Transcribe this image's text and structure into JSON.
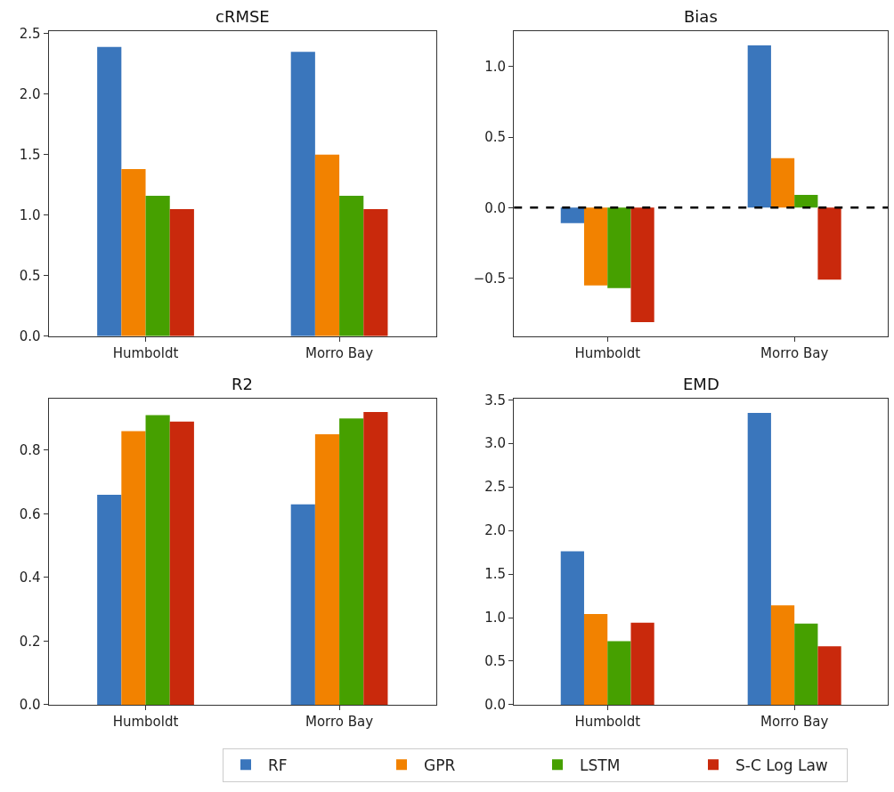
{
  "chart_data": [
    {
      "type": "bar",
      "title": "cRMSE",
      "categories": [
        "Humboldt",
        "Morro Bay"
      ],
      "ylim": [
        0,
        2.52
      ],
      "yticks": [
        {
          "value": 0,
          "label": "0.0"
        },
        {
          "value": 0.5,
          "label": "0.5"
        },
        {
          "value": 1,
          "label": "1.0"
        },
        {
          "value": 1.5,
          "label": "1.5"
        },
        {
          "value": 2,
          "label": "2.0"
        },
        {
          "value": 2.5,
          "label": "2.5"
        }
      ],
      "legend": "bottom",
      "series": [
        {
          "name": "RF",
          "color": "#3a76bc",
          "values": [
            2.39,
            2.35
          ]
        },
        {
          "name": "GPR",
          "color": "#f28200",
          "values": [
            1.38,
            1.5
          ]
        },
        {
          "name": "LSTM",
          "color": "#46a000",
          "values": [
            1.16,
            1.16
          ]
        },
        {
          "name": "S-C Log Law",
          "color": "#c9290c",
          "values": [
            1.05,
            1.05
          ]
        }
      ]
    },
    {
      "type": "bar",
      "title": "Bias",
      "categories": [
        "Humboldt",
        "Morro Bay"
      ],
      "ylim": [
        -0.91,
        1.25
      ],
      "yticks": [
        {
          "value": -0.5,
          "label": "−0.5"
        },
        {
          "value": 0,
          "label": "0.0"
        },
        {
          "value": 0.5,
          "label": "0.5"
        },
        {
          "value": 1,
          "label": "1.0"
        }
      ],
      "ref_lines": [
        {
          "axis": "y",
          "value": 0,
          "label": null,
          "color": "#000000",
          "line_style": "dashed"
        }
      ],
      "series": [
        {
          "color": "#3a76bc",
          "values": [
            -0.11,
            1.15
          ]
        },
        {
          "color": "#f28200",
          "values": [
            -0.55,
            0.35
          ]
        },
        {
          "color": "#46a000",
          "values": [
            -0.57,
            0.09
          ]
        },
        {
          "color": "#c9290c",
          "values": [
            -0.81,
            -0.51
          ]
        }
      ]
    },
    {
      "type": "bar",
      "title": "R2",
      "categories": [
        "Humboldt",
        "Morro Bay"
      ],
      "ylim": [
        0,
        0.961
      ],
      "yticks": [
        {
          "value": 0,
          "label": "0.0"
        },
        {
          "value": 0.2,
          "label": "0.2"
        },
        {
          "value": 0.4,
          "label": "0.4"
        },
        {
          "value": 0.6,
          "label": "0.6"
        },
        {
          "value": 0.8,
          "label": "0.8"
        }
      ],
      "series": [
        {
          "color": "#3a76bc",
          "values": [
            0.66,
            0.63
          ]
        },
        {
          "color": "#f28200",
          "values": [
            0.86,
            0.85
          ]
        },
        {
          "color": "#46a000",
          "values": [
            0.91,
            0.9
          ]
        },
        {
          "color": "#c9290c",
          "values": [
            0.89,
            0.92
          ]
        }
      ]
    },
    {
      "type": "bar",
      "title": "EMD",
      "categories": [
        "Humboldt",
        "Morro Bay"
      ],
      "ylim": [
        0,
        3.51
      ],
      "yticks": [
        {
          "value": 0,
          "label": "0.0"
        },
        {
          "value": 0.5,
          "label": "0.5"
        },
        {
          "value": 1,
          "label": "1.0"
        },
        {
          "value": 1.5,
          "label": "1.5"
        },
        {
          "value": 2,
          "label": "2.0"
        },
        {
          "value": 2.5,
          "label": "2.5"
        },
        {
          "value": 3,
          "label": "3.0"
        },
        {
          "value": 3.5,
          "label": "3.5"
        }
      ],
      "series": [
        {
          "color": "#3a76bc",
          "values": [
            1.76,
            3.35
          ]
        },
        {
          "color": "#f28200",
          "values": [
            1.04,
            1.14
          ]
        },
        {
          "color": "#46a000",
          "values": [
            0.73,
            0.93
          ]
        },
        {
          "color": "#c9290c",
          "values": [
            0.94,
            0.67
          ]
        }
      ]
    }
  ]
}
